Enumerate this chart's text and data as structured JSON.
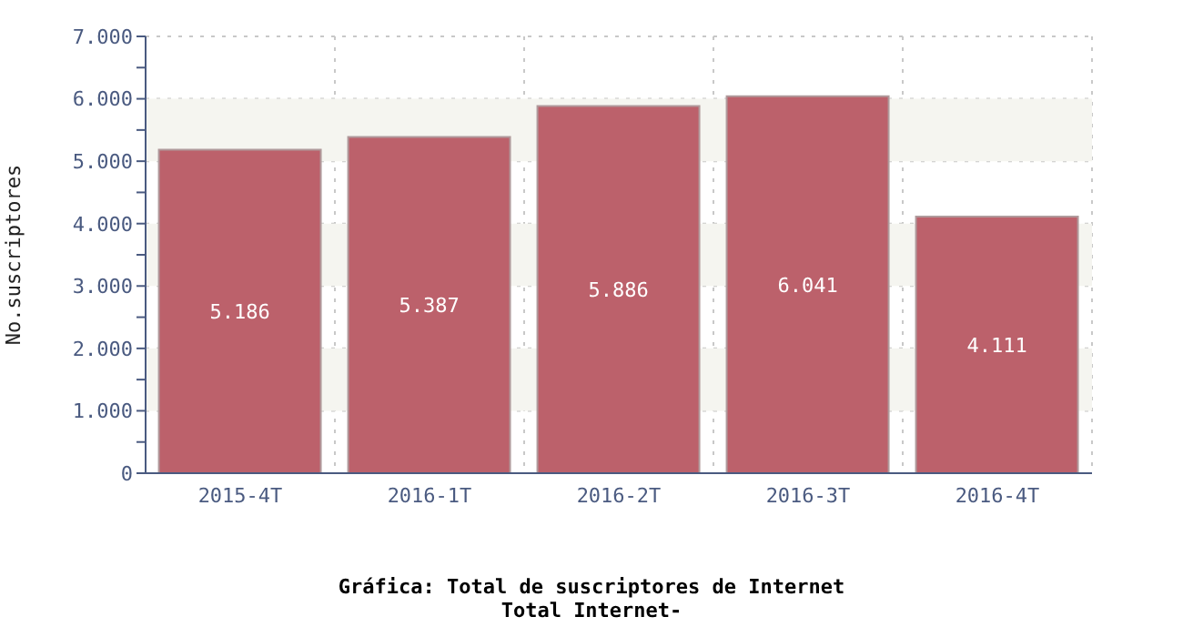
{
  "chart_data": {
    "type": "bar",
    "title": "Gráfica: Total de suscriptores de Internet",
    "subtitle": "Total Internet-",
    "ylabel": "No.suscriptores",
    "categories": [
      "2015-4T",
      "2016-1T",
      "2016-2T",
      "2016-3T",
      "2016-4T"
    ],
    "values": [
      5186,
      5387,
      5886,
      6041,
      4111
    ],
    "color": "#bc616b",
    "value_labels": [
      "5.186",
      "5.387",
      "5.886",
      "6.041",
      "4.111"
    ],
    "ylim": [
      0,
      7000
    ],
    "yticks": [
      {
        "value": 0,
        "label": "0"
      },
      {
        "value": 500,
        "label": null
      },
      {
        "value": 1000,
        "label": "1.000"
      },
      {
        "value": 1500,
        "label": null
      },
      {
        "value": 2000,
        "label": "2.000"
      },
      {
        "value": 2500,
        "label": null
      },
      {
        "value": 3000,
        "label": "3.000"
      },
      {
        "value": 3500,
        "label": null
      },
      {
        "value": 4000,
        "label": "4.000"
      },
      {
        "value": 4500,
        "label": null
      },
      {
        "value": 5000,
        "label": "5.000"
      },
      {
        "value": 5500,
        "label": null
      },
      {
        "value": 6000,
        "label": "6.000"
      },
      {
        "value": 6500,
        "label": null
      },
      {
        "value": 7000,
        "label": "7.000"
      }
    ],
    "bands": [
      {
        "axis": "y",
        "from": 1000,
        "to": 2000,
        "color": "#f5f5f0"
      },
      {
        "axis": "y",
        "from": 3000,
        "to": 4000,
        "color": "#f5f5f0"
      },
      {
        "axis": "y",
        "from": 5000,
        "to": 6000,
        "color": "#f5f5f0"
      }
    ],
    "grid": true
  }
}
